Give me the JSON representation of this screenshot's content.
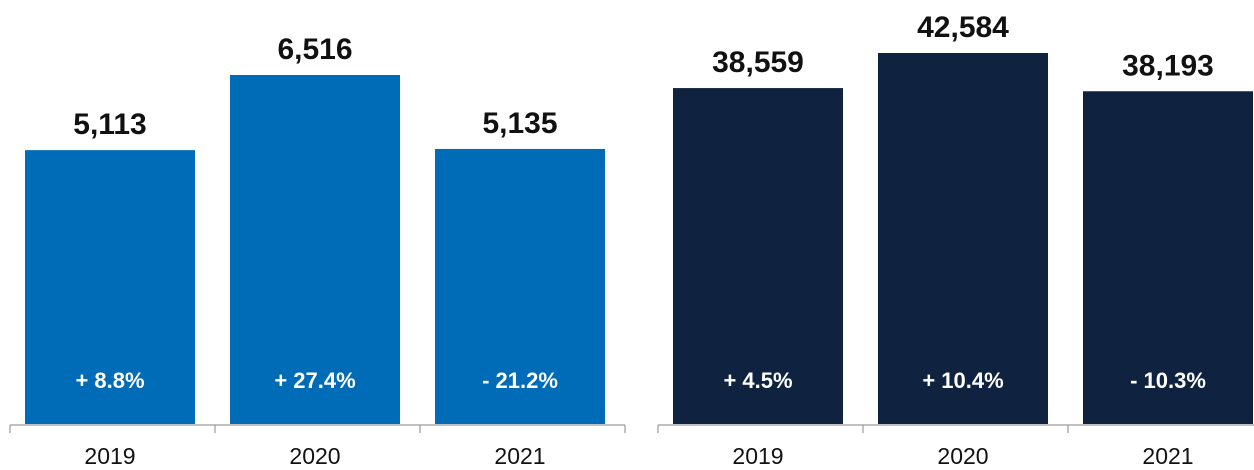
{
  "chart_data": [
    {
      "type": "bar",
      "categories": [
        "2019",
        "2020",
        "2021"
      ],
      "values": [
        5113,
        6516,
        5135
      ],
      "value_labels": [
        "5,113",
        "6,516",
        "5,135"
      ],
      "change_labels": [
        "+ 8.8%",
        "+ 27.4%",
        "- 21.2%"
      ],
      "color": "#006BB6",
      "title": "",
      "xlabel": "",
      "ylabel": "",
      "grid": false,
      "legend": "none"
    },
    {
      "type": "bar",
      "categories": [
        "2019",
        "2020",
        "2021"
      ],
      "values": [
        38559,
        42584,
        38193
      ],
      "value_labels": [
        "38,559",
        "42,584",
        "38,193"
      ],
      "change_labels": [
        "+ 4.5%",
        "+ 10.4%",
        "- 10.3%"
      ],
      "color": "#0F2341",
      "title": "",
      "xlabel": "",
      "ylabel": "",
      "grid": false,
      "legend": "none"
    }
  ]
}
